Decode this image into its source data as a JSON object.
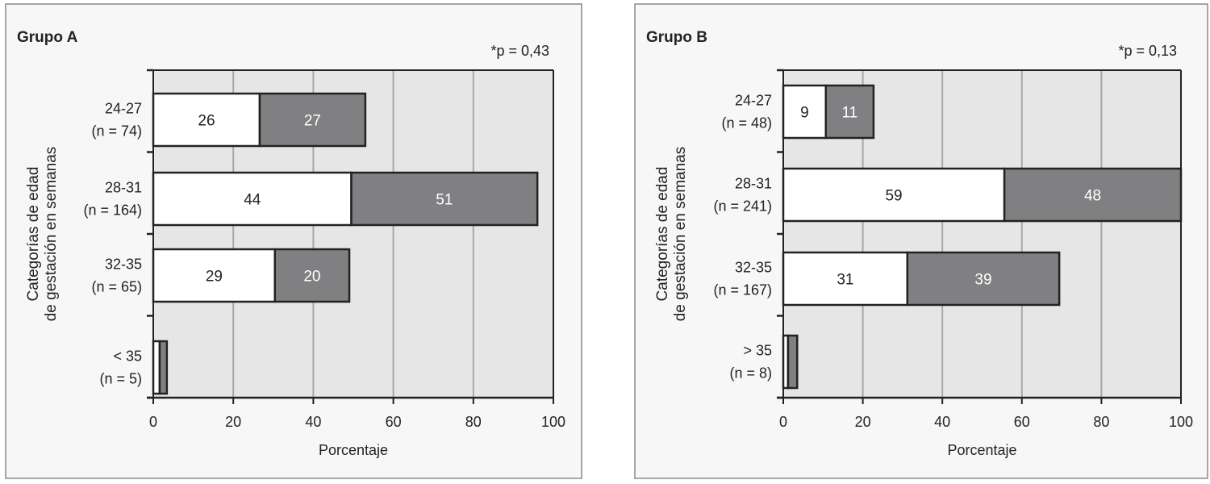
{
  "chart_data": [
    {
      "type": "bar",
      "orientation": "horizontal",
      "stacked": true,
      "title": "Grupo A",
      "annotation": "*p = 0,43",
      "xlabel": "Porcentaje",
      "ylabel_lines": [
        "Categorías de edad",
        "de gestación en semanas"
      ],
      "xlim": [
        0,
        100
      ],
      "xticks": [
        "0",
        "20",
        "40",
        "60",
        "80",
        "100"
      ],
      "grid": true,
      "categories": [
        {
          "label": "24-27",
          "n": "(n = 74)",
          "values": [
            26,
            27
          ],
          "value_labels": [
            "26",
            "27"
          ],
          "extent_pct": [
            26.6,
            53
          ]
        },
        {
          "label": "28-31",
          "n": "(n = 164)",
          "values": [
            44,
            51
          ],
          "value_labels": [
            "44",
            "51"
          ],
          "extent_pct": [
            49.5,
            96
          ]
        },
        {
          "label": "32-35",
          "n": "(n = 65)",
          "values": [
            29,
            20
          ],
          "value_labels": [
            "29",
            "20"
          ],
          "extent_pct": [
            30.4,
            49
          ]
        },
        {
          "label": "< 35",
          "n": "(n = 5)",
          "values": [
            null,
            null
          ],
          "value_labels": [
            "",
            ""
          ],
          "extent_pct": [
            1.6,
            3.4
          ]
        }
      ],
      "series_colors": [
        "#ffffff",
        "#808083"
      ]
    },
    {
      "type": "bar",
      "orientation": "horizontal",
      "stacked": true,
      "title": "Grupo B",
      "annotation": "*p = 0,13",
      "xlabel": "Porcentaje",
      "ylabel_lines": [
        "Categorías de edad",
        "de gestación en semanas"
      ],
      "xlim": [
        0,
        100
      ],
      "xticks": [
        "0",
        "20",
        "40",
        "60",
        "80",
        "100"
      ],
      "grid": true,
      "categories": [
        {
          "label": "24-27",
          "n": "(n = 48)",
          "values": [
            9,
            11
          ],
          "value_labels": [
            "9",
            "11"
          ],
          "extent_pct": [
            10.7,
            22.7
          ]
        },
        {
          "label": "28-31",
          "n": "(n = 241)",
          "values": [
            59,
            48
          ],
          "value_labels": [
            "59",
            "48"
          ],
          "extent_pct": [
            55.6,
            100
          ]
        },
        {
          "label": "32-35",
          "n": "(n = 167)",
          "values": [
            31,
            39
          ],
          "value_labels": [
            "31",
            "39"
          ],
          "extent_pct": [
            31.2,
            69.4
          ]
        },
        {
          "label": "> 35",
          "n": "(n = 8)",
          "values": [
            null,
            null
          ],
          "value_labels": [
            "",
            ""
          ],
          "extent_pct": [
            1.2,
            3.5
          ]
        }
      ],
      "series_colors": [
        "#ffffff",
        "#808083"
      ]
    }
  ]
}
